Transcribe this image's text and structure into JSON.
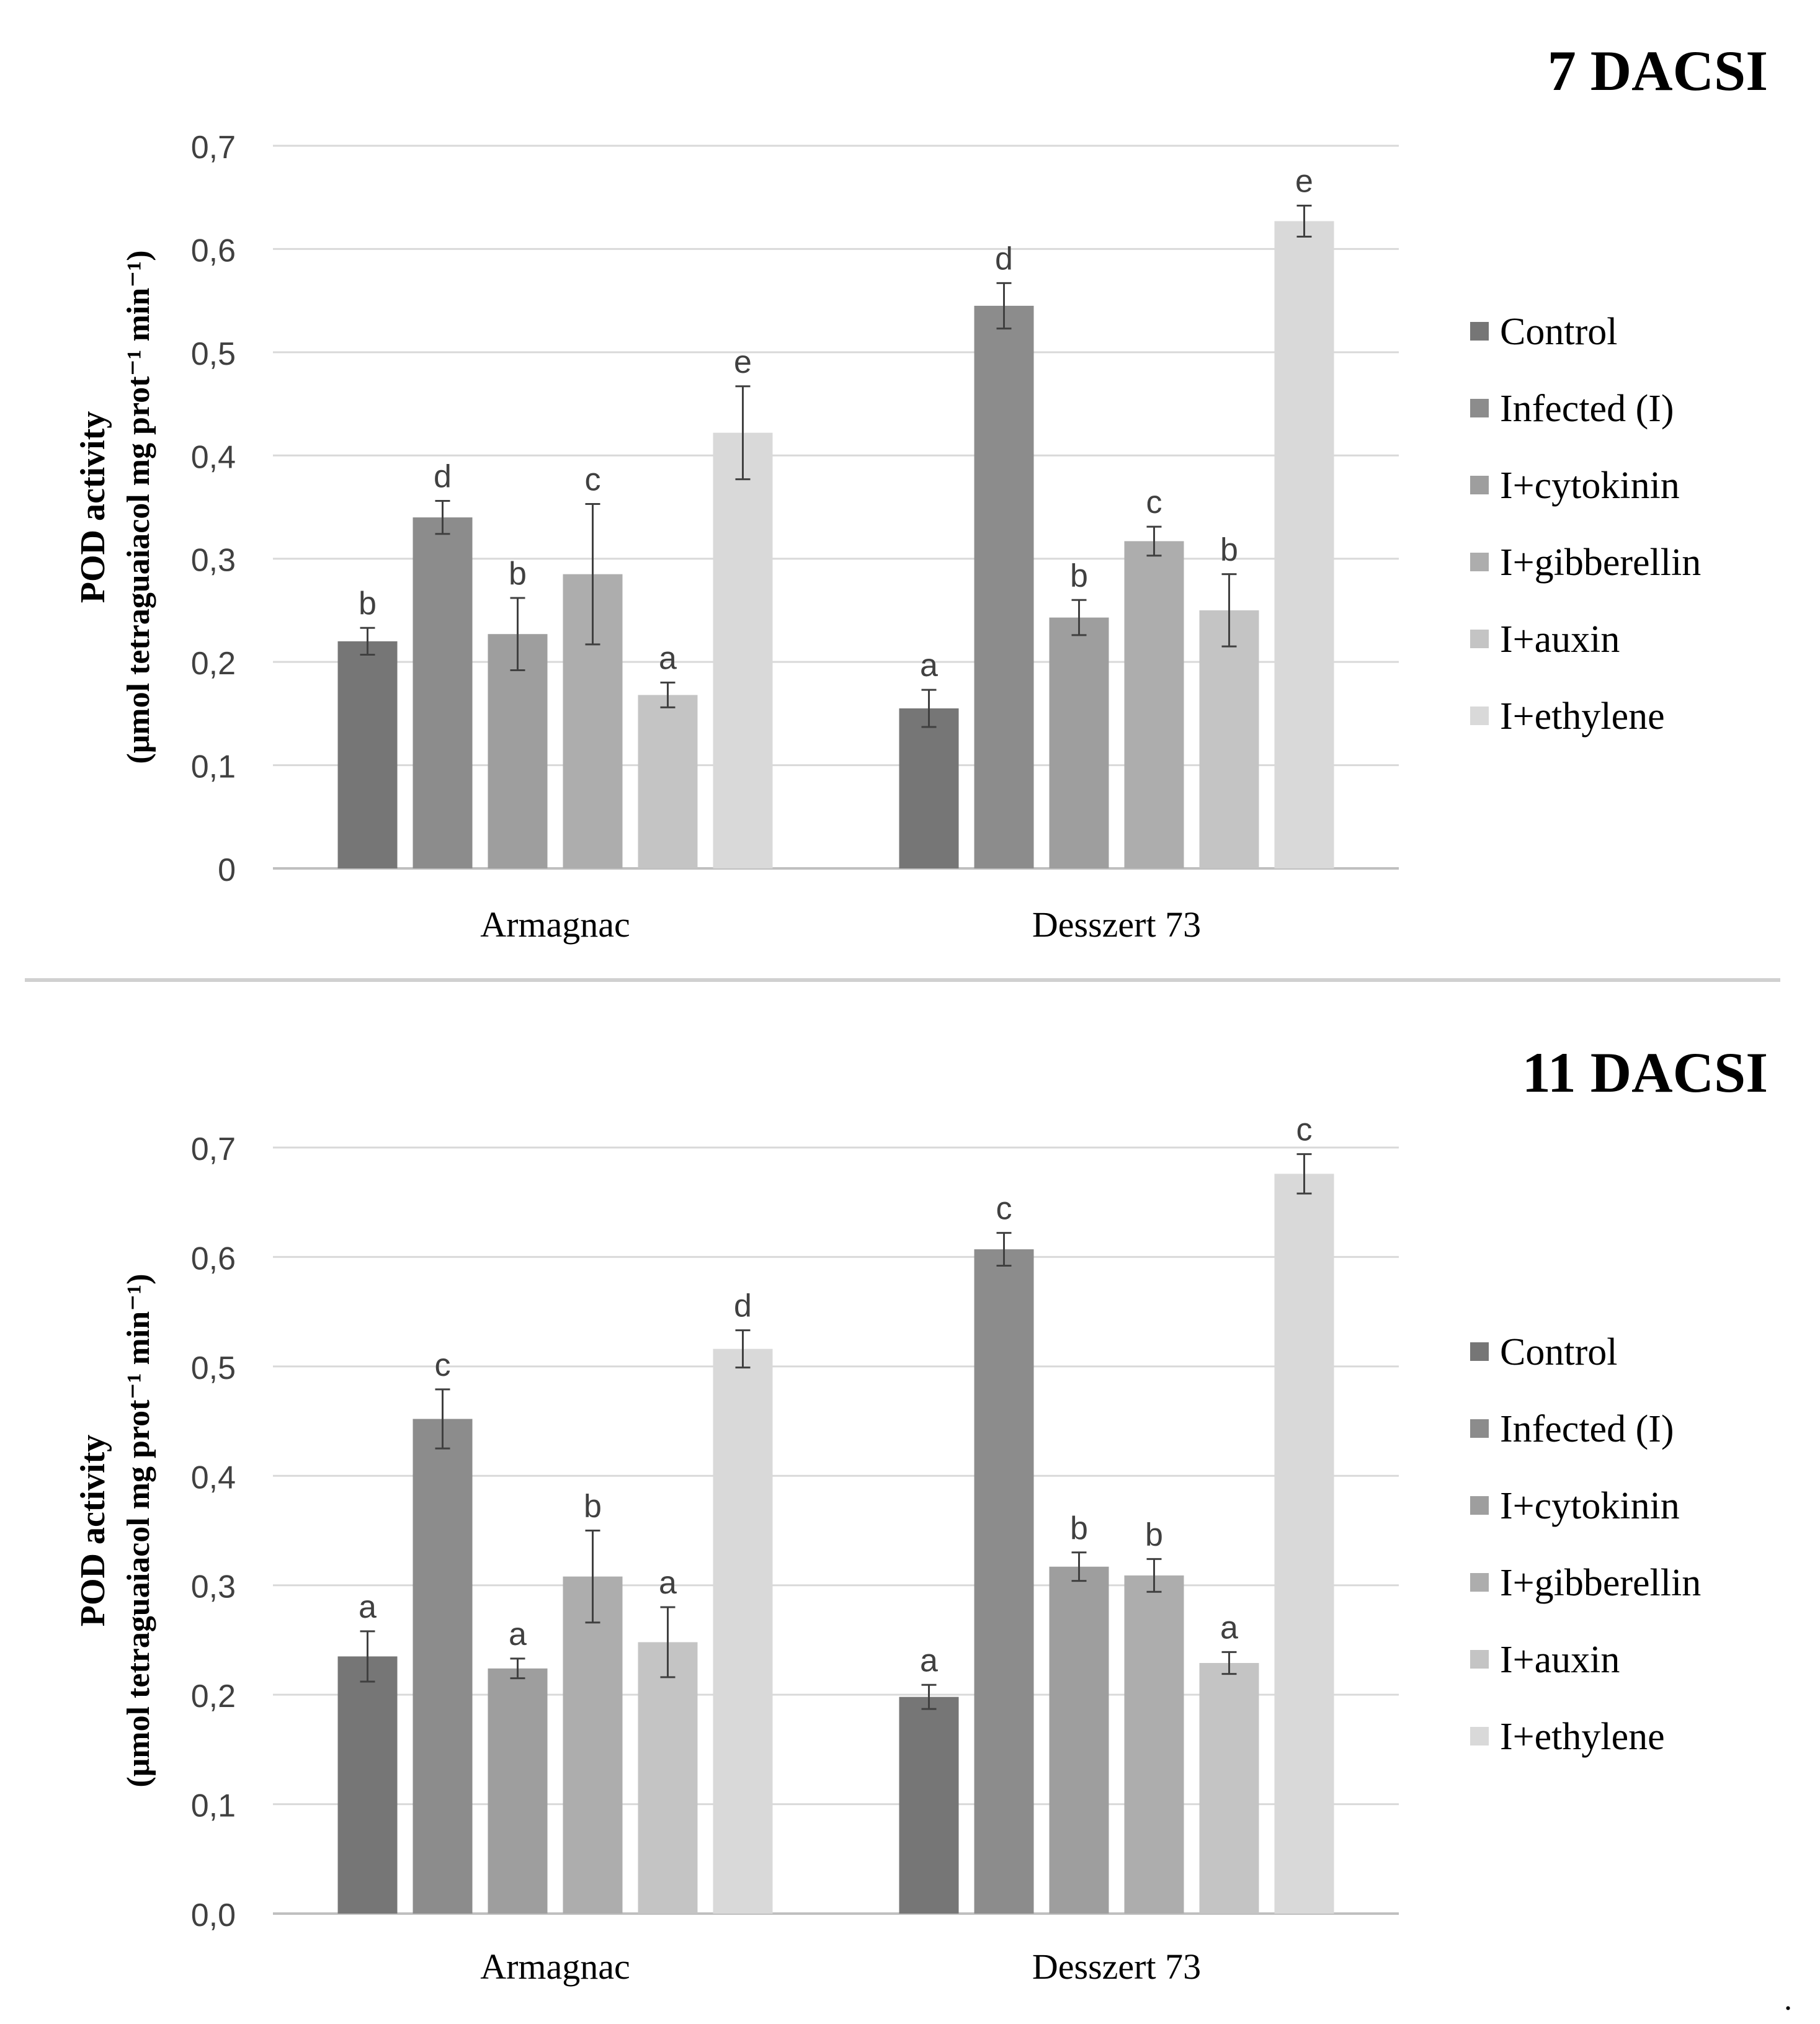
{
  "colors": {
    "series": [
      "#767676",
      "#8c8c8c",
      "#9e9e9e",
      "#adadad",
      "#c4c4c4",
      "#d9d9d9"
    ],
    "grid": "#d9d9d9",
    "axis": "#bfbfbf",
    "error_bar": "#404040",
    "text": "#000000",
    "label_text": "#404040",
    "divider": "#d0d0d0"
  },
  "chart_data": [
    {
      "type": "bar",
      "title": "7 DACSI",
      "ylabel_line1": "POD activity",
      "ylabel_line2": "(μmol tetraguaiacol mg prot⁻¹ min⁻¹)",
      "xlabel": "",
      "ylim": [
        0,
        0.7
      ],
      "yticks": [
        "0",
        "0,1",
        "0,2",
        "0,3",
        "0,4",
        "0,5",
        "0,6",
        "0,7"
      ],
      "categories": [
        "Armagnac",
        "Desszert 73"
      ],
      "series": [
        {
          "name": "Control",
          "values": [
            0.22,
            0.155
          ],
          "errors": [
            0.013,
            0.018
          ],
          "letters": [
            "b",
            "a"
          ]
        },
        {
          "name": "Infected (I)",
          "values": [
            0.34,
            0.545
          ],
          "errors": [
            0.016,
            0.022
          ],
          "letters": [
            "d",
            "d"
          ]
        },
        {
          "name": "I+cytokinin",
          "values": [
            0.227,
            0.243
          ],
          "errors": [
            0.035,
            0.017
          ],
          "letters": [
            "b",
            "b"
          ]
        },
        {
          "name": "I+gibberellin",
          "values": [
            0.285,
            0.317
          ],
          "errors": [
            0.068,
            0.014
          ],
          "letters": [
            "c",
            "c"
          ]
        },
        {
          "name": "I+auxin",
          "values": [
            0.168,
            0.25
          ],
          "errors": [
            0.012,
            0.035
          ],
          "letters": [
            "a",
            "b"
          ]
        },
        {
          "name": "I+ethylene",
          "values": [
            0.422,
            0.627
          ],
          "errors": [
            0.045,
            0.015
          ],
          "letters": [
            "e",
            "e"
          ]
        }
      ],
      "legend_position": "right"
    },
    {
      "type": "bar",
      "title": "11 DACSI",
      "ylabel_line1": "POD activity",
      "ylabel_line2": "(μmol tetraguaiacol mg prot⁻¹ min⁻¹)",
      "xlabel": "",
      "ylim": [
        0,
        0.7
      ],
      "yticks": [
        "0,0",
        "0,1",
        "0,2",
        "0,3",
        "0,4",
        "0,5",
        "0,6",
        "0,7"
      ],
      "categories": [
        "Armagnac",
        "Desszert 73"
      ],
      "series": [
        {
          "name": "Control",
          "values": [
            0.235,
            0.198
          ],
          "errors": [
            0.023,
            0.011
          ],
          "letters": [
            "a",
            "a"
          ]
        },
        {
          "name": "Infected (I)",
          "values": [
            0.452,
            0.607
          ],
          "errors": [
            0.027,
            0.015
          ],
          "letters": [
            "c",
            "c"
          ]
        },
        {
          "name": "I+cytokinin",
          "values": [
            0.224,
            0.317
          ],
          "errors": [
            0.009,
            0.013
          ],
          "letters": [
            "a",
            "b"
          ]
        },
        {
          "name": "I+gibberellin",
          "values": [
            0.308,
            0.309
          ],
          "errors": [
            0.042,
            0.015
          ],
          "letters": [
            "b",
            "b"
          ]
        },
        {
          "name": "I+auxin",
          "values": [
            0.248,
            0.229
          ],
          "errors": [
            0.032,
            0.01
          ],
          "letters": [
            "a",
            "a"
          ]
        },
        {
          "name": "I+ethylene",
          "values": [
            0.516,
            0.676
          ],
          "errors": [
            0.017,
            0.018
          ],
          "letters": [
            "d",
            "c"
          ]
        }
      ],
      "legend_position": "right"
    }
  ],
  "footer_mark": "."
}
